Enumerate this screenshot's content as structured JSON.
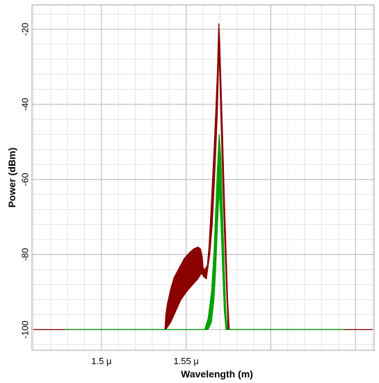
{
  "chart_data": {
    "type": "line",
    "title": "",
    "xlabel": "Wavelength (m)",
    "ylabel": "Power (dBm)",
    "xlim": [
      1.459e-06,
      1.661e-06
    ],
    "ylim": [
      -105.5,
      -13.5
    ],
    "x_ticks": [
      {
        "value": 1.5e-06,
        "label": "1.5 μ"
      },
      {
        "value": 1.55e-06,
        "label": "1.55 μ"
      }
    ],
    "y_ticks": [
      {
        "value": -20,
        "label": "-20"
      },
      {
        "value": -40,
        "label": "-40"
      },
      {
        "value": -60,
        "label": "-60"
      },
      {
        "value": -80,
        "label": "-80"
      },
      {
        "value": -100,
        "label": "-100"
      }
    ],
    "grid": true,
    "legend": "none",
    "colors": {
      "red_series": "#8b0000",
      "green_series": "#00a000",
      "grid_major": "#b4b4b4",
      "grid_minor": "#e4e4e4"
    },
    "series": [
      {
        "color": "#8b0000",
        "style": "filled-band",
        "upper": [
          [
            1.46e-06,
            -100
          ],
          [
            1.5375e-06,
            -100
          ],
          [
            1.538e-06,
            -96
          ],
          [
            1.539e-06,
            -93
          ],
          [
            1.541e-06,
            -89
          ],
          [
            1.543e-06,
            -86
          ],
          [
            1.546e-06,
            -83.5
          ],
          [
            1.549e-06,
            -81
          ],
          [
            1.552e-06,
            -79.5
          ],
          [
            1.5545e-06,
            -78.5
          ],
          [
            1.557e-06,
            -78
          ],
          [
            1.5585e-06,
            -78.5
          ],
          [
            1.5595e-06,
            -80.5
          ],
          [
            1.56e-06,
            -83.5
          ],
          [
            1.561e-06,
            -84
          ],
          [
            1.5625e-06,
            -83
          ],
          [
            1.5635e-06,
            -78
          ],
          [
            1.5645e-06,
            -70
          ],
          [
            1.5655e-06,
            -61
          ],
          [
            1.5665e-06,
            -52
          ],
          [
            1.5675e-06,
            -42
          ],
          [
            1.5685e-06,
            -31
          ],
          [
            1.569e-06,
            -23
          ],
          [
            1.5693e-06,
            -18.5
          ],
          [
            1.5698e-06,
            -23
          ],
          [
            1.5705e-06,
            -33
          ],
          [
            1.5715e-06,
            -48
          ],
          [
            1.5725e-06,
            -64
          ],
          [
            1.5735e-06,
            -78
          ],
          [
            1.5745e-06,
            -92
          ],
          [
            1.5755e-06,
            -100
          ],
          [
            1.66e-06,
            -100
          ]
        ],
        "lower": [
          [
            1.46e-06,
            -100
          ],
          [
            1.5375e-06,
            -100
          ],
          [
            1.538e-06,
            -100
          ],
          [
            1.541e-06,
            -98
          ],
          [
            1.544e-06,
            -95
          ],
          [
            1.547e-06,
            -92
          ],
          [
            1.551e-06,
            -89.5
          ],
          [
            1.555e-06,
            -87.5
          ],
          [
            1.557e-06,
            -86.5
          ],
          [
            1.559e-06,
            -85
          ],
          [
            1.5605e-06,
            -86
          ],
          [
            1.562e-06,
            -86.5
          ],
          [
            1.564e-06,
            -80
          ],
          [
            1.5655e-06,
            -72
          ],
          [
            1.5665e-06,
            -63
          ],
          [
            1.5675e-06,
            -53
          ],
          [
            1.5685e-06,
            -42
          ],
          [
            1.569e-06,
            -33
          ],
          [
            1.5693e-06,
            -26
          ],
          [
            1.5698e-06,
            -32
          ],
          [
            1.5708e-06,
            -48
          ],
          [
            1.5718e-06,
            -63
          ],
          [
            1.5728e-06,
            -77
          ],
          [
            1.5738e-06,
            -89
          ],
          [
            1.5748e-06,
            -100
          ],
          [
            1.66e-06,
            -100
          ]
        ]
      },
      {
        "color": "#00a000",
        "style": "filled-band",
        "upper": [
          [
            1.4785e-06,
            -100
          ],
          [
            1.561e-06,
            -100
          ],
          [
            1.563e-06,
            -97
          ],
          [
            1.565e-06,
            -90
          ],
          [
            1.5665e-06,
            -79
          ],
          [
            1.5675e-06,
            -68
          ],
          [
            1.5685e-06,
            -57
          ],
          [
            1.5695e-06,
            -48
          ],
          [
            1.5705e-06,
            -54
          ],
          [
            1.5715e-06,
            -69
          ],
          [
            1.5725e-06,
            -84
          ],
          [
            1.5735e-06,
            -96
          ],
          [
            1.5745e-06,
            -100
          ],
          [
            1.6432e-06,
            -100
          ]
        ],
        "lower": [
          [
            1.4785e-06,
            -100
          ],
          [
            1.561e-06,
            -100
          ],
          [
            1.563e-06,
            -100
          ],
          [
            1.565e-06,
            -98
          ],
          [
            1.5665e-06,
            -92
          ],
          [
            1.5675e-06,
            -84
          ],
          [
            1.5685e-06,
            -73
          ],
          [
            1.5695e-06,
            -63
          ],
          [
            1.5705e-06,
            -71
          ],
          [
            1.5715e-06,
            -84
          ],
          [
            1.5725e-06,
            -95
          ],
          [
            1.5735e-06,
            -100
          ],
          [
            1.6432e-06,
            -100
          ]
        ]
      }
    ]
  }
}
